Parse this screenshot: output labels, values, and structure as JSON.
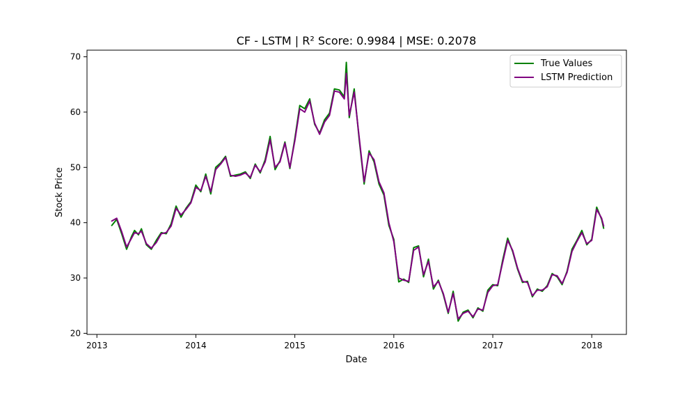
{
  "chart_data": {
    "type": "line",
    "title": "CF - LSTM | R² Score: 0.9984 | MSE: 0.2078",
    "xlabel": "Date",
    "ylabel": "Stock Price",
    "xlim": [
      2012.9,
      2018.35
    ],
    "ylim": [
      19.8,
      71.2
    ],
    "xticks": [
      2013,
      2014,
      2015,
      2016,
      2017,
      2018
    ],
    "xtick_labels": [
      "2013",
      "2014",
      "2015",
      "2016",
      "2017",
      "2018"
    ],
    "yticks": [
      20,
      30,
      40,
      50,
      60,
      70
    ],
    "ytick_labels": [
      "20",
      "30",
      "40",
      "50",
      "60",
      "70"
    ],
    "grid": false,
    "legend_position": "top-right",
    "series": [
      {
        "name": "True Values",
        "color": "#008000",
        "x": [
          2013.15,
          2013.2,
          2013.25,
          2013.3,
          2013.35,
          2013.38,
          2013.42,
          2013.45,
          2013.5,
          2013.55,
          2013.6,
          2013.65,
          2013.7,
          2013.75,
          2013.8,
          2013.85,
          2013.9,
          2013.95,
          2014.0,
          2014.05,
          2014.1,
          2014.15,
          2014.2,
          2014.25,
          2014.3,
          2014.35,
          2014.4,
          2014.45,
          2014.5,
          2014.55,
          2014.6,
          2014.65,
          2014.7,
          2014.75,
          2014.8,
          2014.85,
          2014.9,
          2014.95,
          2015.0,
          2015.05,
          2015.1,
          2015.15,
          2015.2,
          2015.25,
          2015.3,
          2015.35,
          2015.4,
          2015.45,
          2015.5,
          2015.52,
          2015.55,
          2015.6,
          2015.65,
          2015.7,
          2015.75,
          2015.8,
          2015.85,
          2015.9,
          2015.95,
          2016.0,
          2016.05,
          2016.1,
          2016.15,
          2016.2,
          2016.25,
          2016.3,
          2016.35,
          2016.4,
          2016.45,
          2016.5,
          2016.55,
          2016.6,
          2016.65,
          2016.7,
          2016.75,
          2016.8,
          2016.85,
          2016.9,
          2016.95,
          2017.0,
          2017.05,
          2017.1,
          2017.15,
          2017.2,
          2017.25,
          2017.3,
          2017.35,
          2017.4,
          2017.45,
          2017.5,
          2017.55,
          2017.6,
          2017.65,
          2017.7,
          2017.75,
          2017.8,
          2017.85,
          2017.9,
          2017.95,
          2018.0,
          2018.05,
          2018.1
        ],
        "y": [
          39.5,
          40.6,
          38.0,
          35.2,
          37.5,
          38.6,
          37.8,
          38.9,
          36.0,
          35.2,
          36.8,
          38.2,
          38.0,
          39.8,
          43.0,
          41.0,
          42.6,
          43.8,
          46.8,
          45.6,
          48.8,
          45.2,
          50.0,
          50.8,
          52.0,
          48.4,
          48.6,
          48.8,
          49.2,
          48.0,
          50.6,
          49.0,
          51.4,
          55.6,
          49.6,
          51.2,
          54.6,
          49.8,
          55.2,
          61.2,
          60.6,
          62.4,
          57.8,
          56.2,
          58.6,
          59.8,
          64.2,
          64.0,
          62.8,
          69.0,
          59.0,
          64.2,
          55.0,
          47.0,
          53.0,
          51.0,
          47.0,
          45.0,
          39.5,
          37.0,
          29.3,
          29.8,
          29.2,
          35.5,
          35.8,
          30.2,
          33.4,
          28.0,
          29.6,
          27.0,
          23.6,
          27.6,
          22.2,
          23.8,
          24.2,
          22.8,
          24.6,
          24.0,
          27.8,
          28.8,
          28.6,
          33.2,
          37.2,
          34.8,
          31.6,
          29.2,
          29.4,
          26.6,
          28.0,
          27.6,
          28.6,
          30.8,
          30.2,
          28.8,
          31.2,
          35.2,
          36.8,
          38.6,
          36.0,
          37.0,
          42.8,
          40.6
        ],
        "extra_points": [
          [
            2018.12,
            39.0
          ]
        ]
      },
      {
        "name": "LSTM Prediction",
        "color": "#800080",
        "x": [
          2013.15,
          2013.2,
          2013.25,
          2013.3,
          2013.35,
          2013.38,
          2013.42,
          2013.45,
          2013.5,
          2013.55,
          2013.6,
          2013.65,
          2013.7,
          2013.75,
          2013.8,
          2013.85,
          2013.9,
          2013.95,
          2014.0,
          2014.05,
          2014.1,
          2014.15,
          2014.2,
          2014.25,
          2014.3,
          2014.35,
          2014.4,
          2014.45,
          2014.5,
          2014.55,
          2014.6,
          2014.65,
          2014.7,
          2014.75,
          2014.8,
          2014.85,
          2014.9,
          2014.95,
          2015.0,
          2015.05,
          2015.1,
          2015.15,
          2015.2,
          2015.25,
          2015.3,
          2015.35,
          2015.4,
          2015.45,
          2015.5,
          2015.52,
          2015.55,
          2015.6,
          2015.65,
          2015.7,
          2015.75,
          2015.8,
          2015.85,
          2015.9,
          2015.95,
          2016.0,
          2016.05,
          2016.1,
          2016.15,
          2016.2,
          2016.25,
          2016.3,
          2016.35,
          2016.4,
          2016.45,
          2016.5,
          2016.55,
          2016.6,
          2016.65,
          2016.7,
          2016.75,
          2016.8,
          2016.85,
          2016.9,
          2016.95,
          2017.0,
          2017.05,
          2017.1,
          2017.15,
          2017.2,
          2017.25,
          2017.3,
          2017.35,
          2017.4,
          2017.45,
          2017.5,
          2017.55,
          2017.6,
          2017.65,
          2017.7,
          2017.75,
          2017.8,
          2017.85,
          2017.9,
          2017.95,
          2018.0,
          2018.05,
          2018.1
        ],
        "y": [
          40.3,
          40.8,
          38.4,
          35.6,
          37.2,
          38.2,
          38.0,
          38.5,
          36.2,
          35.4,
          36.4,
          38.0,
          38.2,
          39.4,
          42.6,
          41.4,
          42.4,
          43.6,
          46.4,
          45.8,
          48.4,
          45.6,
          49.6,
          50.6,
          51.8,
          48.6,
          48.4,
          48.6,
          49.0,
          48.2,
          50.4,
          49.2,
          51.0,
          55.0,
          50.0,
          51.0,
          54.4,
          50.0,
          54.8,
          60.6,
          60.0,
          62.0,
          58.0,
          56.0,
          58.2,
          59.4,
          63.8,
          63.6,
          62.4,
          67.0,
          59.4,
          63.6,
          55.4,
          47.4,
          52.6,
          51.4,
          47.4,
          45.4,
          40.0,
          36.6,
          30.0,
          29.6,
          29.4,
          35.0,
          35.6,
          30.6,
          33.0,
          28.4,
          29.4,
          27.2,
          23.8,
          27.2,
          22.6,
          23.6,
          24.0,
          23.0,
          24.4,
          24.2,
          27.4,
          28.6,
          28.8,
          32.8,
          36.8,
          35.0,
          31.8,
          29.4,
          29.2,
          26.8,
          27.8,
          27.8,
          28.4,
          30.6,
          30.4,
          29.0,
          31.0,
          34.8,
          36.6,
          38.2,
          36.2,
          36.8,
          42.4,
          40.8
        ],
        "extra_points": [
          [
            2018.12,
            39.4
          ]
        ]
      }
    ]
  }
}
